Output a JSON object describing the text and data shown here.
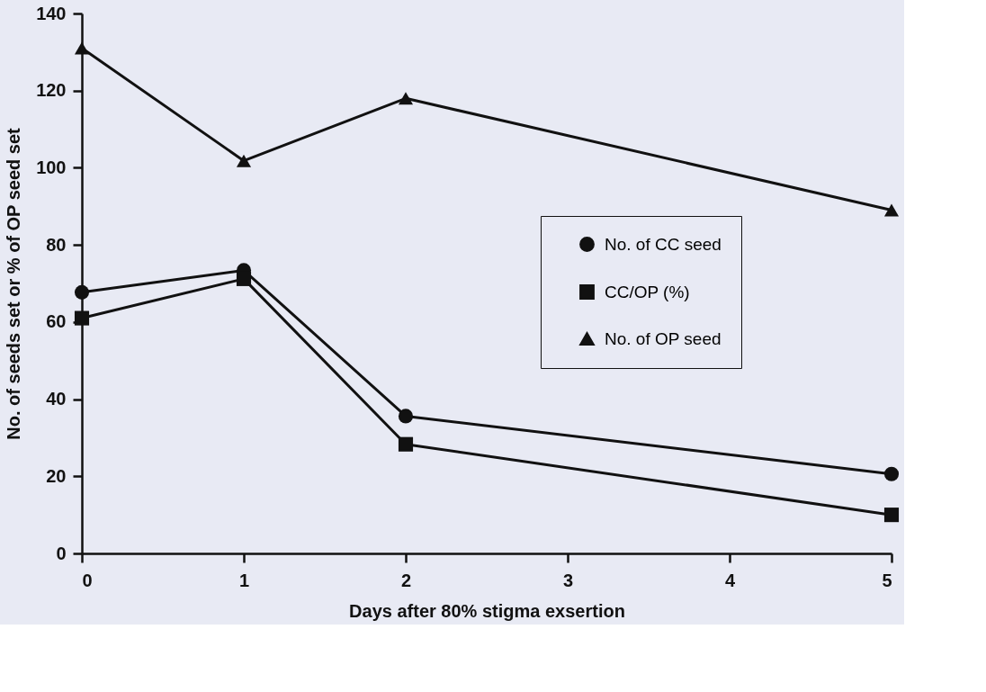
{
  "chart_data": {
    "type": "line",
    "xlabel": "Days after 80% stigma exsertion",
    "ylabel": "No. of seeds set or % of OP seed set",
    "x": [
      0,
      1,
      2,
      5
    ],
    "xlim": [
      0,
      5
    ],
    "xticks": [
      0,
      1,
      2,
      3,
      4,
      5
    ],
    "ylim": [
      0,
      140
    ],
    "yticks": [
      0,
      20,
      40,
      60,
      80,
      100,
      120,
      140
    ],
    "grid": false,
    "legend": "right",
    "line_style": "solid",
    "series": [
      {
        "name": "No. of CC seed",
        "color": "#111111",
        "marker": "circle",
        "values": [
          67.7,
          73.4,
          35.6,
          20.6
        ]
      },
      {
        "name": "CC/OP (%)",
        "color": "#111111",
        "marker": "square",
        "values": [
          61,
          71.2,
          28.3,
          10
        ]
      },
      {
        "name": "No. of OP seed",
        "color": "#111111",
        "marker": "triangle",
        "values": [
          131,
          101.8,
          118,
          89
        ]
      }
    ]
  }
}
